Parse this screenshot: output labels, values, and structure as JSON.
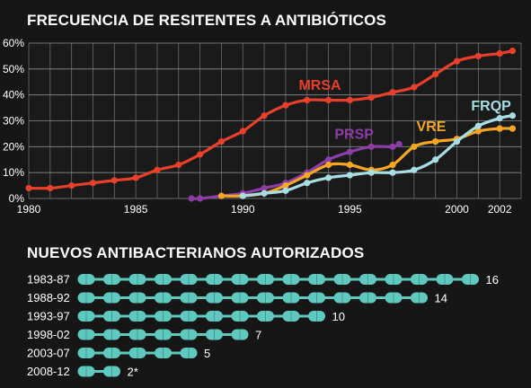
{
  "chart_data": [
    {
      "type": "line",
      "title": "FRECUENCIA DE RESITENTES A ANTIBIÓTICOS",
      "xlabel": "",
      "ylabel": "",
      "xlim": [
        1980,
        2003
      ],
      "ylim": [
        0,
        60
      ],
      "y_unit": "%",
      "grid": true,
      "xticks": [
        1980,
        1985,
        1990,
        1995,
        2000,
        2002
      ],
      "yticks": [
        0,
        10,
        20,
        30,
        40,
        50,
        60
      ],
      "series": [
        {
          "name": "MRSA",
          "color": "#e8402a",
          "x": [
            1980,
            1981,
            1982,
            1983,
            1984,
            1985,
            1986,
            1987,
            1988,
            1989,
            1990,
            1991,
            1992,
            1993,
            1994,
            1995,
            1996,
            1997,
            1998,
            1999,
            2000,
            2001,
            2002,
            2002.6
          ],
          "y": [
            4,
            4,
            5,
            6,
            7,
            8,
            11,
            13,
            17,
            22,
            26,
            32,
            36,
            38,
            38,
            38,
            39,
            41,
            43,
            48,
            53,
            55,
            56,
            57
          ]
        },
        {
          "name": "PRSP",
          "color": "#8e3ca8",
          "x": [
            1987.6,
            1988,
            1989,
            1990,
            1991,
            1992,
            1993,
            1994,
            1995,
            1996,
            1997,
            1997.3
          ],
          "y": [
            0,
            0,
            1,
            2,
            4,
            6,
            10,
            15,
            18,
            20,
            20,
            21
          ]
        },
        {
          "name": "VRE",
          "color": "#f5a623",
          "x": [
            1989,
            1990,
            1991,
            1992,
            1993,
            1994,
            1995,
            1996,
            1997,
            1998,
            1999,
            2000,
            2001,
            2002,
            2002.6
          ],
          "y": [
            1,
            1,
            2,
            5,
            9,
            13,
            13,
            11,
            13,
            20,
            22,
            23,
            26,
            27,
            27
          ]
        },
        {
          "name": "FRQP",
          "color": "#a8dde4",
          "x": [
            1990,
            1991,
            1992,
            1993,
            1994,
            1995,
            1996,
            1997,
            1998,
            1999,
            2000,
            2001,
            2002,
            2002.6
          ],
          "y": [
            1,
            2,
            3,
            6,
            8,
            9,
            10,
            10,
            11,
            15,
            22,
            28,
            31,
            32
          ]
        }
      ]
    },
    {
      "type": "bar",
      "title": "NUEVOS ANTIBACTERIANOS AUTORIZADOS",
      "color": "#5fc9bf",
      "categories": [
        "1983-87",
        "1988-92",
        "1993-97",
        "1998-02",
        "2003-07",
        "2008-12"
      ],
      "values": [
        16,
        14,
        10,
        7,
        5,
        2
      ],
      "value_labels": [
        "16",
        "14",
        "10",
        "7",
        "5",
        "2*"
      ]
    }
  ]
}
